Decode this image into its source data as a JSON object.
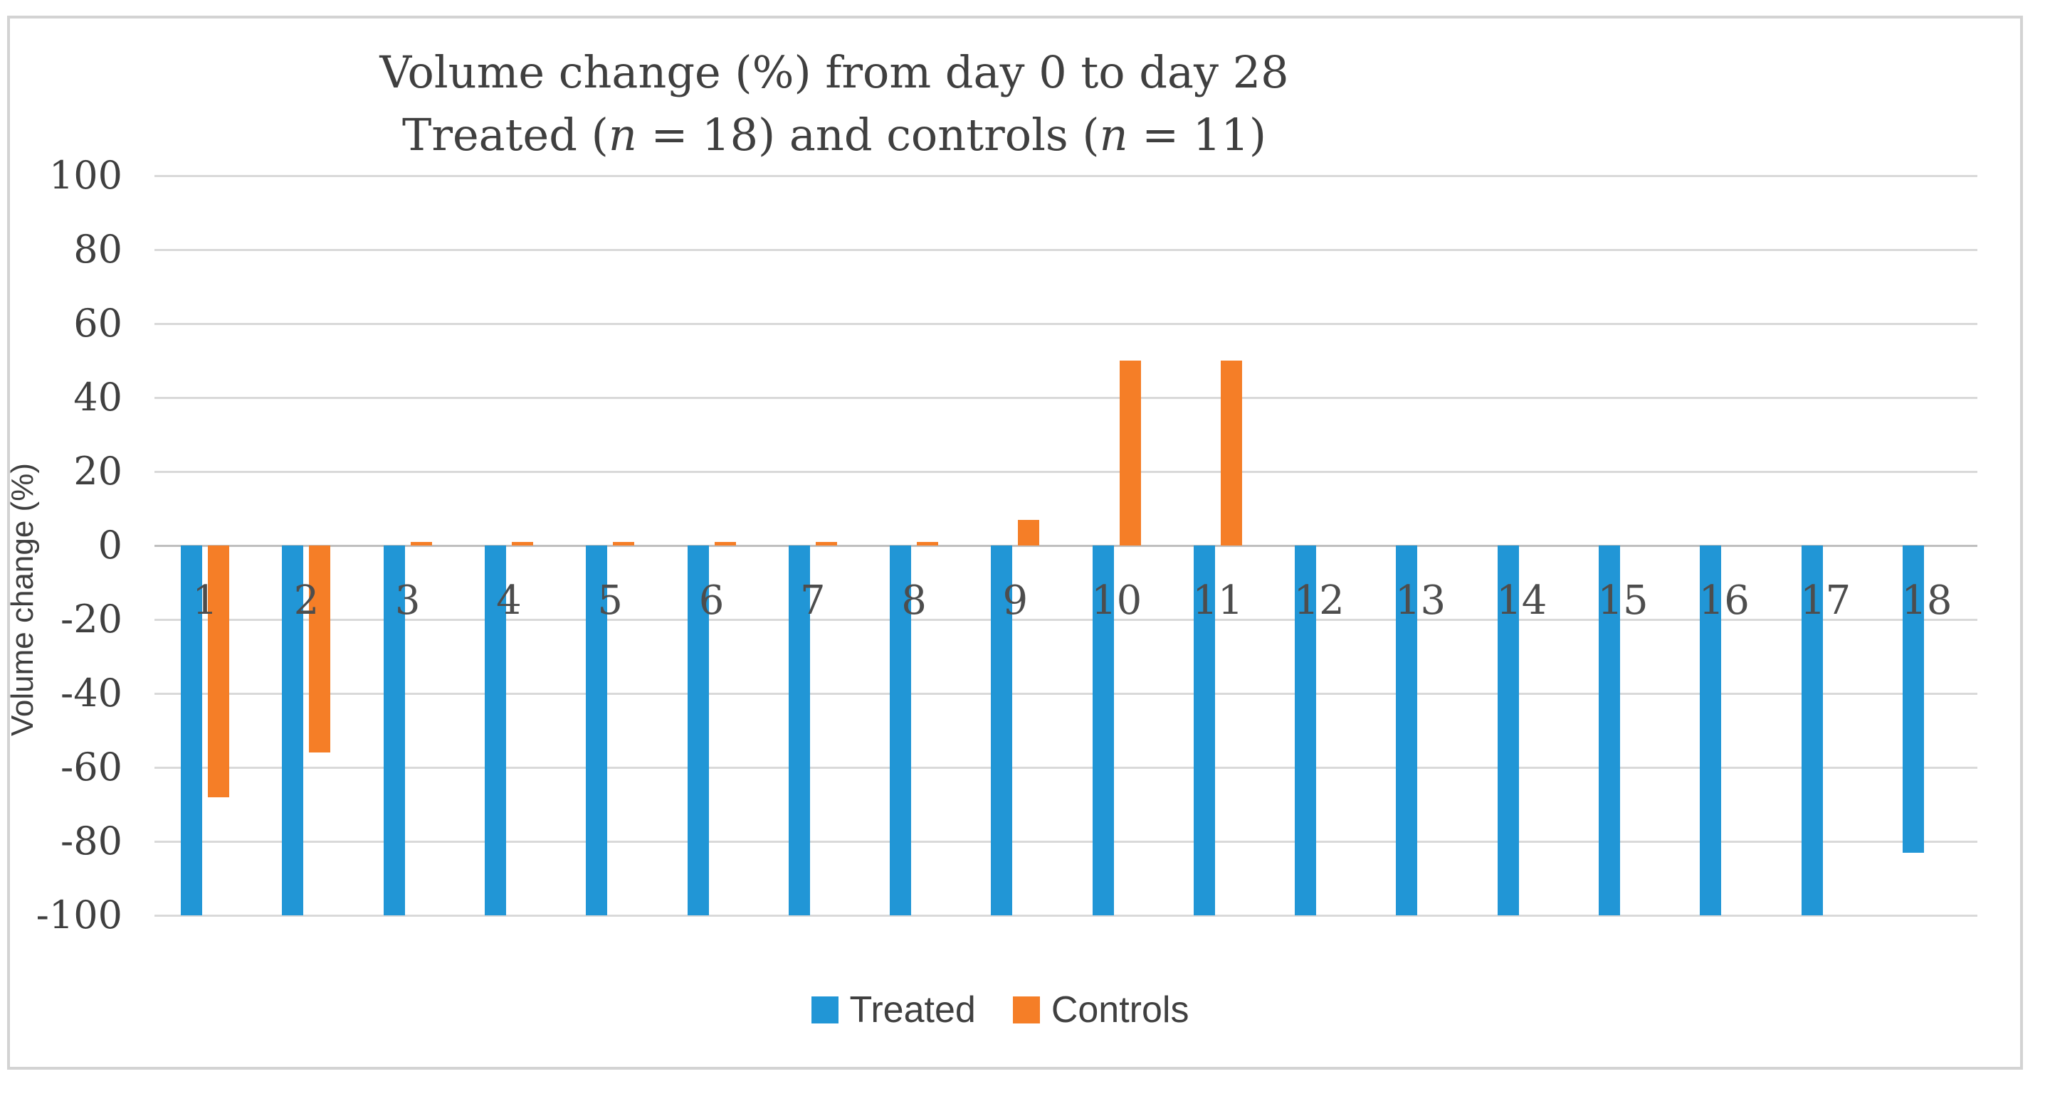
{
  "chart_data": {
    "type": "bar",
    "title": "Volume change (%) from day 0 to day 28\nTreated (n = 18) and controls (n = 11)",
    "title_lines": [
      {
        "parts": [
          {
            "text": "Volume change (%) from day 0 to day 28",
            "italic": false
          }
        ]
      },
      {
        "parts": [
          {
            "text": "Treated (",
            "italic": false
          },
          {
            "text": "n",
            "italic": true
          },
          {
            "text": " = 18) and controls (",
            "italic": false
          },
          {
            "text": "n",
            "italic": true
          },
          {
            "text": " = 11)",
            "italic": false
          }
        ]
      }
    ],
    "categories": [
      "1",
      "2",
      "3",
      "4",
      "5",
      "6",
      "7",
      "8",
      "9",
      "10",
      "11",
      "12",
      "13",
      "14",
      "15",
      "16",
      "17",
      "18"
    ],
    "series": [
      {
        "name": "Treated",
        "color": "#2196d6",
        "values": [
          -100,
          -100,
          -100,
          -100,
          -100,
          -100,
          -100,
          -100,
          -100,
          -100,
          -100,
          -100,
          -100,
          -100,
          -100,
          -100,
          -100,
          -83
        ]
      },
      {
        "name": "Controls",
        "color": "#f57e27",
        "values": [
          -68,
          -56,
          1,
          1,
          1,
          1,
          1,
          1,
          7,
          50,
          50,
          null,
          null,
          null,
          null,
          null,
          null,
          null
        ]
      }
    ],
    "ylabel": "Volume change (%)",
    "yticks": [
      100,
      80,
      60,
      40,
      20,
      0,
      -20,
      -40,
      -60,
      -80,
      -100
    ],
    "ylim": [
      -100,
      100
    ],
    "grid": true,
    "legend_position": "bottom",
    "colors": {
      "treated": "#2196d6",
      "controls": "#f57e27",
      "gridline": "#d9d9d9",
      "axis_line": "#bfbfbf",
      "text": "#3f3f3f",
      "frame_border": "#d3d3d3"
    }
  }
}
